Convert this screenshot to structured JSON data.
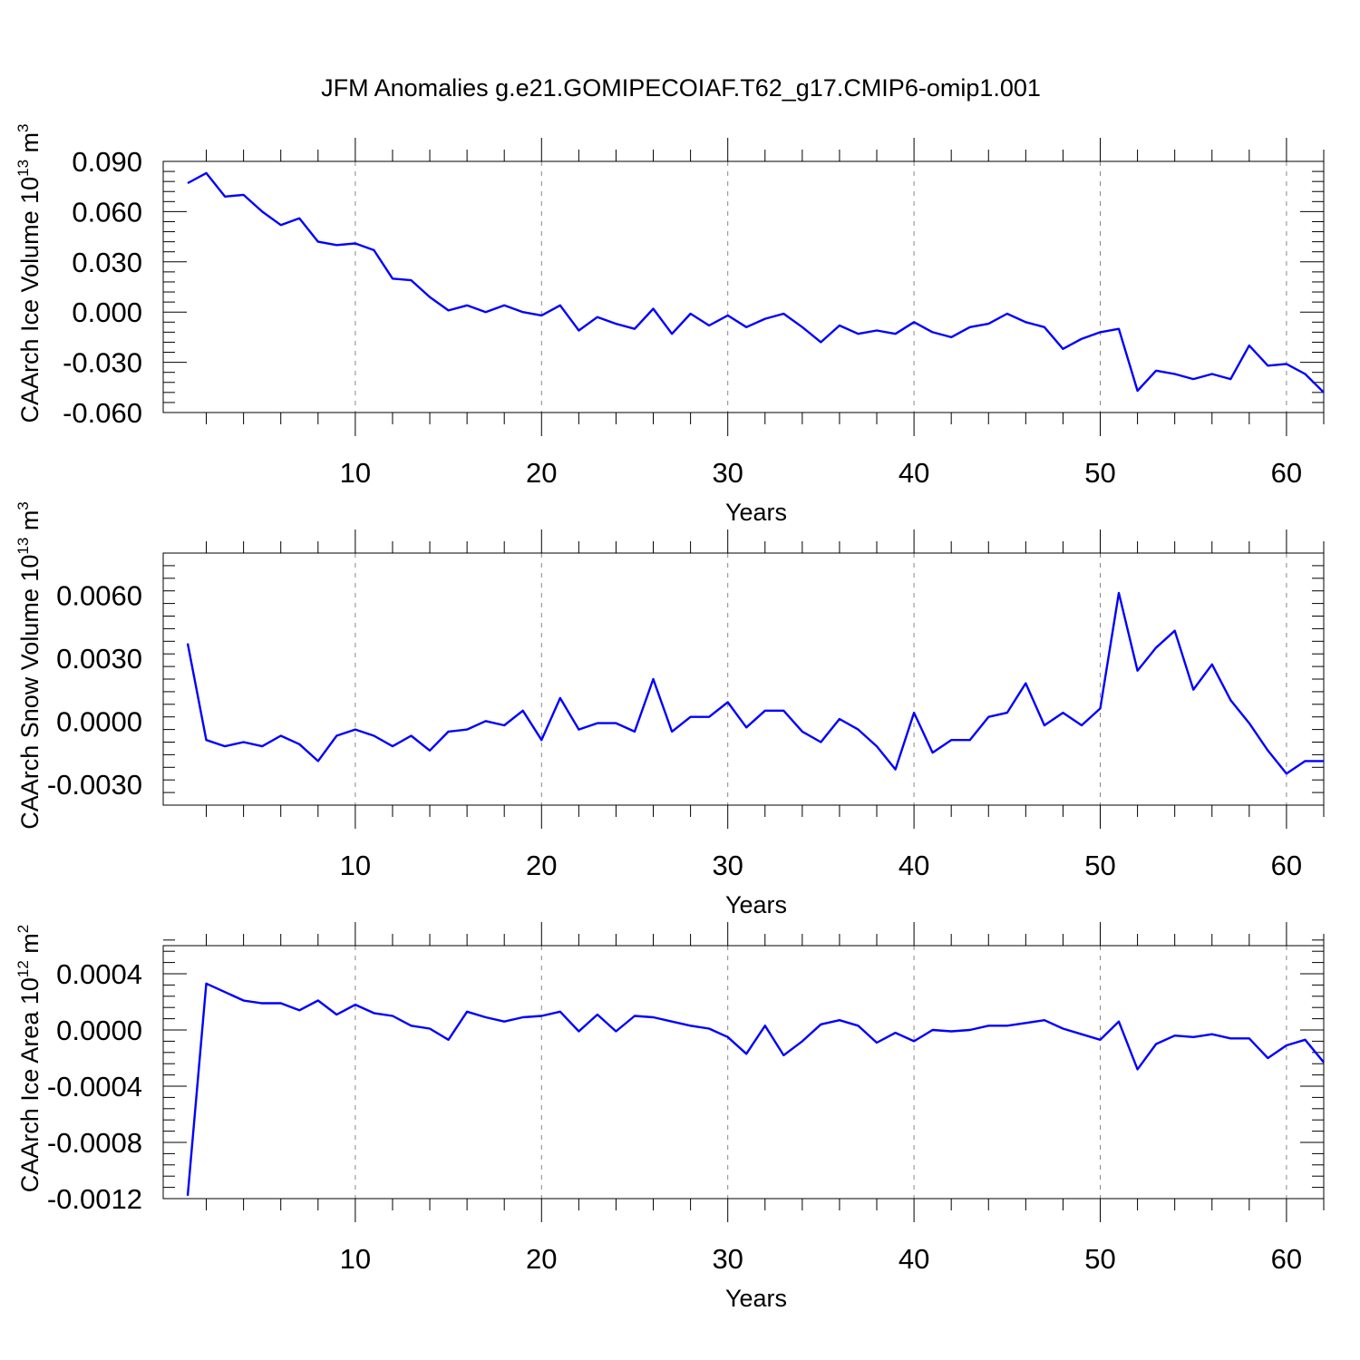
{
  "title": "JFM Anomalies g.e21.GOMIPECOIAF.T62_g17.CMIP6-omip1.001",
  "colors": {
    "series": "#0000ff",
    "axes": "#000000",
    "grid": "#888888"
  },
  "chart_data": [
    {
      "type": "line",
      "ylabel": "CAArch Ice Volume 10",
      "ylabel_exp": "13",
      "ylabel_unit": "m",
      "ylabel_unit_exp": "3",
      "xlabel": "Years",
      "xlim": [
        1,
        62
      ],
      "ylim": [
        -0.06,
        0.09
      ],
      "xticks": [
        10,
        20,
        30,
        40,
        50,
        60
      ],
      "xtick_labels": [
        "10",
        "20",
        "30",
        "40",
        "50",
        "60"
      ],
      "yticks": [
        -0.06,
        -0.03,
        0.0,
        0.03,
        0.06,
        0.09
      ],
      "ytick_labels": [
        "-0.060",
        "-0.030",
        "0.000",
        "0.030",
        "0.060",
        "0.090"
      ],
      "grid": "vertical dashed at x labels",
      "series": [
        {
          "x": [
            1,
            2,
            3,
            4,
            5,
            6,
            7,
            8,
            9,
            10,
            11,
            12,
            13,
            14,
            15,
            16,
            17,
            18,
            19,
            20,
            21,
            22,
            23,
            24,
            25,
            26,
            27,
            28,
            29,
            30,
            31,
            32,
            33,
            34,
            35,
            36,
            37,
            38,
            39,
            40,
            41,
            42,
            43,
            44,
            45,
            46,
            47,
            48,
            49,
            50,
            51,
            52,
            53,
            54,
            55,
            56,
            57,
            58,
            59,
            60,
            61,
            62
          ],
          "values": [
            0.077,
            0.083,
            0.069,
            0.07,
            0.06,
            0.052,
            0.056,
            0.042,
            0.04,
            0.041,
            0.037,
            0.02,
            0.019,
            0.009,
            0.001,
            0.004,
            0.0,
            0.004,
            0.0,
            -0.002,
            0.004,
            -0.011,
            -0.003,
            -0.007,
            -0.01,
            0.002,
            -0.013,
            -0.001,
            -0.008,
            -0.002,
            -0.009,
            -0.004,
            -0.001,
            -0.009,
            -0.018,
            -0.008,
            -0.013,
            -0.011,
            -0.013,
            -0.006,
            -0.012,
            -0.015,
            -0.009,
            -0.007,
            -0.001,
            -0.006,
            -0.009,
            -0.022,
            -0.016,
            -0.012,
            -0.01,
            -0.047,
            -0.035,
            -0.037,
            -0.04,
            -0.037,
            -0.04,
            -0.02,
            -0.032,
            -0.031,
            -0.037,
            -0.048
          ]
        }
      ]
    },
    {
      "type": "line",
      "ylabel": "CAArch Snow Volume 10",
      "ylabel_exp": "13",
      "ylabel_unit": "m",
      "ylabel_unit_exp": "3",
      "xlabel": "Years",
      "xlim": [
        1,
        62
      ],
      "ylim": [
        -0.004,
        0.008
      ],
      "xticks": [
        10,
        20,
        30,
        40,
        50,
        60
      ],
      "xtick_labels": [
        "10",
        "20",
        "30",
        "40",
        "50",
        "60"
      ],
      "yticks": [
        -0.003,
        0.0,
        0.003,
        0.006
      ],
      "ytick_labels": [
        "-0.0030",
        "0.0000",
        "0.0030",
        "0.0060"
      ],
      "grid": "vertical dashed at x labels",
      "series": [
        {
          "x": [
            1,
            2,
            3,
            4,
            5,
            6,
            7,
            8,
            9,
            10,
            11,
            12,
            13,
            14,
            15,
            16,
            17,
            18,
            19,
            20,
            21,
            22,
            23,
            24,
            25,
            26,
            27,
            28,
            29,
            30,
            31,
            32,
            33,
            34,
            35,
            36,
            37,
            38,
            39,
            40,
            41,
            42,
            43,
            44,
            45,
            46,
            47,
            48,
            49,
            50,
            51,
            52,
            53,
            54,
            55,
            56,
            57,
            58,
            59,
            60,
            61,
            62
          ],
          "values": [
            0.0037,
            -0.0009,
            -0.0012,
            -0.001,
            -0.0012,
            -0.0007,
            -0.0011,
            -0.0019,
            -0.0007,
            -0.0004,
            -0.0007,
            -0.0012,
            -0.0007,
            -0.0014,
            -0.0005,
            -0.0004,
            0.0,
            -0.0002,
            0.0005,
            -0.0009,
            0.0011,
            -0.0004,
            -0.0001,
            -0.0001,
            -0.0005,
            0.002,
            -0.0005,
            0.0002,
            0.0002,
            0.0009,
            -0.0003,
            0.0005,
            0.0005,
            -0.0005,
            -0.001,
            0.0001,
            -0.0004,
            -0.0012,
            -0.0023,
            0.0004,
            -0.0015,
            -0.0009,
            -0.0009,
            0.0002,
            0.0004,
            0.0018,
            -0.0002,
            0.0004,
            -0.0002,
            0.0006,
            0.0061,
            0.0024,
            0.0035,
            0.0043,
            0.0015,
            0.0027,
            0.001,
            -0.0001,
            -0.0014,
            -0.0025,
            -0.0019,
            -0.0019
          ]
        }
      ]
    },
    {
      "type": "line",
      "ylabel": "CAArch Ice Area 10",
      "ylabel_exp": "12",
      "ylabel_unit": "m",
      "ylabel_unit_exp": "2",
      "xlabel": "Years",
      "xlim": [
        1,
        62
      ],
      "ylim": [
        -0.0012,
        0.0006
      ],
      "xticks": [
        10,
        20,
        30,
        40,
        50,
        60
      ],
      "xtick_labels": [
        "10",
        "20",
        "30",
        "40",
        "50",
        "60"
      ],
      "yticks": [
        -0.0012,
        -0.0008,
        -0.0004,
        0.0,
        0.0004
      ],
      "ytick_labels": [
        "-0.0012",
        "-0.0008",
        "-0.0004",
        "0.0000",
        "0.0004"
      ],
      "grid": "vertical dashed at x labels",
      "series": [
        {
          "x": [
            1,
            2,
            3,
            4,
            5,
            6,
            7,
            8,
            9,
            10,
            11,
            12,
            13,
            14,
            15,
            16,
            17,
            18,
            19,
            20,
            21,
            22,
            23,
            24,
            25,
            26,
            27,
            28,
            29,
            30,
            31,
            32,
            33,
            34,
            35,
            36,
            37,
            38,
            39,
            40,
            41,
            42,
            43,
            44,
            45,
            46,
            47,
            48,
            49,
            50,
            51,
            52,
            53,
            54,
            55,
            56,
            57,
            58,
            59,
            60,
            61,
            62
          ],
          "values": [
            -0.00118,
            0.00033,
            0.00027,
            0.00021,
            0.00019,
            0.00019,
            0.00014,
            0.00021,
            0.00011,
            0.00018,
            0.00012,
            0.0001,
            3e-05,
            1e-05,
            -7e-05,
            0.00013,
            9e-05,
            6e-05,
            9e-05,
            0.0001,
            0.00013,
            -1e-05,
            0.00011,
            -1e-05,
            0.0001,
            9e-05,
            6e-05,
            3e-05,
            1e-05,
            -5e-05,
            -0.00017,
            3e-05,
            -0.00018,
            -8e-05,
            4e-05,
            7e-05,
            3e-05,
            -9e-05,
            -2e-05,
            -8e-05,
            0.0,
            -1e-05,
            0.0,
            3e-05,
            3e-05,
            5e-05,
            7e-05,
            1e-05,
            -3e-05,
            -7e-05,
            6e-05,
            -0.00028,
            -0.0001,
            -4e-05,
            -5e-05,
            -3e-05,
            -6e-05,
            -6e-05,
            -0.0002,
            -0.00011,
            -7e-05,
            -0.00023
          ]
        }
      ]
    }
  ]
}
